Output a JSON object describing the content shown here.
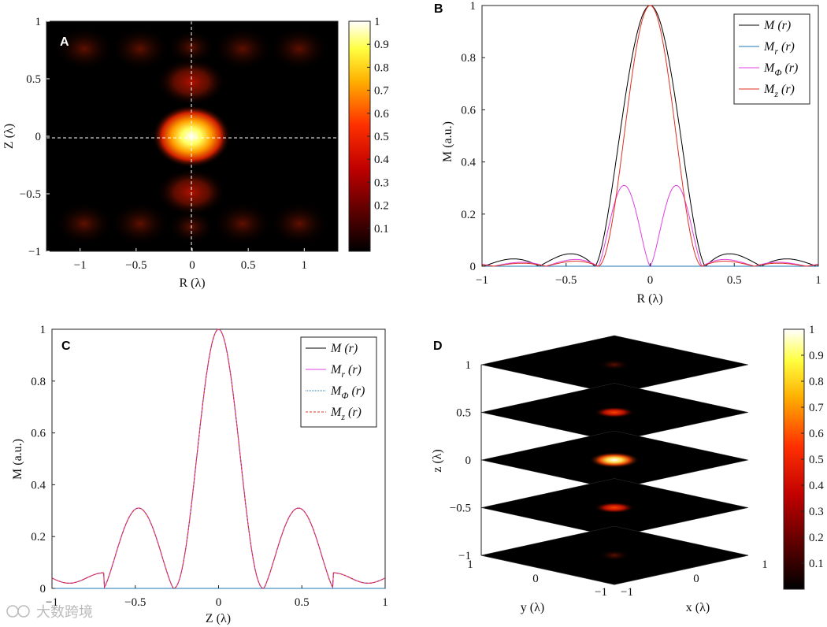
{
  "chart_data": [
    {
      "panel": "A",
      "type": "heatmap",
      "letter": "A",
      "xlabel": "R (λ)",
      "ylabel": "Z (λ)",
      "xlim": [
        -1.3,
        1.3
      ],
      "ylim": [
        -1,
        1
      ],
      "xticks": [
        "−1",
        "−0.5",
        "0",
        "0.5",
        "1"
      ],
      "yticks": [
        "1",
        "0.5",
        "0",
        "−0.5",
        "−1"
      ],
      "colorbar": {
        "min": 0,
        "max": 1,
        "ticks": [
          "1",
          "0.9",
          "0.8",
          "0.7",
          "0.6",
          "0.5",
          "0.4",
          "0.3",
          "0.2",
          "0.1"
        ]
      },
      "guides": "dashed crosshair at R=0 and Z=0"
    },
    {
      "panel": "B",
      "type": "line",
      "letter": "B",
      "xlabel": "R (λ)",
      "ylabel": "M (a.u.)",
      "xlim": [
        -1,
        1
      ],
      "ylim": [
        0,
        1
      ],
      "xticks": [
        "−1",
        "−0.5",
        "0",
        "0.5",
        "1"
      ],
      "yticks": [
        "1",
        "0.8",
        "0.6",
        "0.4",
        "0.2",
        "0"
      ],
      "legend": {
        "position": "top-right",
        "entries": [
          "M (r)",
          "Mr (r)",
          "MΦ (r)",
          "Mz (r)"
        ]
      },
      "series": [
        {
          "name": "M (r)",
          "color": "#000000",
          "peak": 1.0,
          "zero_at": 0.33,
          "sidelobe": 0.045
        },
        {
          "name": "Mr (r)",
          "color": "#1f77b4",
          "peak": 0.0
        },
        {
          "name": "MΦ (r)",
          "color": "#e040e0",
          "peak": 0.31,
          "peak_at": 0.14
        },
        {
          "name": "Mz (r)",
          "color": "#e03020",
          "peak": 1.0,
          "zero_at": 0.31
        }
      ]
    },
    {
      "panel": "C",
      "type": "line",
      "letter": "C",
      "xlabel": "Z (λ)",
      "ylabel": "M (a.u.)",
      "xlim": [
        -1,
        1
      ],
      "ylim": [
        0,
        1
      ],
      "xticks": [
        "−1",
        "−0.5",
        "0",
        "0.5",
        "1"
      ],
      "yticks": [
        "1",
        "0.8",
        "0.6",
        "0.4",
        "0.2",
        "0"
      ],
      "legend": {
        "position": "top-right",
        "entries": [
          "M (r)",
          "Mr (r)",
          "MΦ (r)",
          "Mz (r)"
        ]
      },
      "series": [
        {
          "name": "M (r)",
          "color": "#000000",
          "peak": 1.0,
          "zero_at": 0.27,
          "sidelobe": 0.31,
          "sidelobe_at": 0.48
        },
        {
          "name": "Mr (r)",
          "color": "#e040e0"
        },
        {
          "name": "MΦ (r)",
          "color": "#1f77b4",
          "peak": 0.0
        },
        {
          "name": "Mz (r)",
          "color": "#e03020"
        }
      ]
    },
    {
      "panel": "D",
      "type": "heatmap",
      "letter": "D",
      "xlabel": "x (λ)",
      "ylabel": "y (λ)",
      "zlabel": "z (λ)",
      "zticks": [
        "1",
        "0.5",
        "0",
        "−0.5",
        "−1"
      ],
      "xticks": [
        "−1",
        "0",
        "1"
      ],
      "yticks": [
        "1",
        "0",
        "−1"
      ],
      "slices_z": [
        1,
        0.5,
        0,
        -0.5,
        -1
      ],
      "slice_peak": [
        0.15,
        0.55,
        1.0,
        0.55,
        0.15
      ],
      "colorbar": {
        "min": 0,
        "max": 1,
        "ticks": [
          "1",
          "0.9",
          "0.8",
          "0.7",
          "0.6",
          "0.5",
          "0.4",
          "0.3",
          "0.2",
          "0.1"
        ]
      }
    }
  ],
  "labels": {
    "A_x": "R (λ)",
    "A_y": "Z (λ)",
    "B_x": "R (λ)",
    "B_y": "M (a.u.)",
    "C_x": "Z (λ)",
    "C_y": "M (a.u.)",
    "D_x": "x (λ)",
    "D_y": "y (λ)",
    "D_z": "z (λ)",
    "legend_base": "M",
    "legend_arg": "(r)",
    "sub_r": "r",
    "sub_phi": "Φ",
    "sub_z": "z"
  },
  "colors": {
    "hot_dark": "#000000",
    "hot_red": "#e02000",
    "hot_yellow": "#ffff40",
    "hot_white": "#ffffff"
  },
  "watermark": "大数跨境"
}
